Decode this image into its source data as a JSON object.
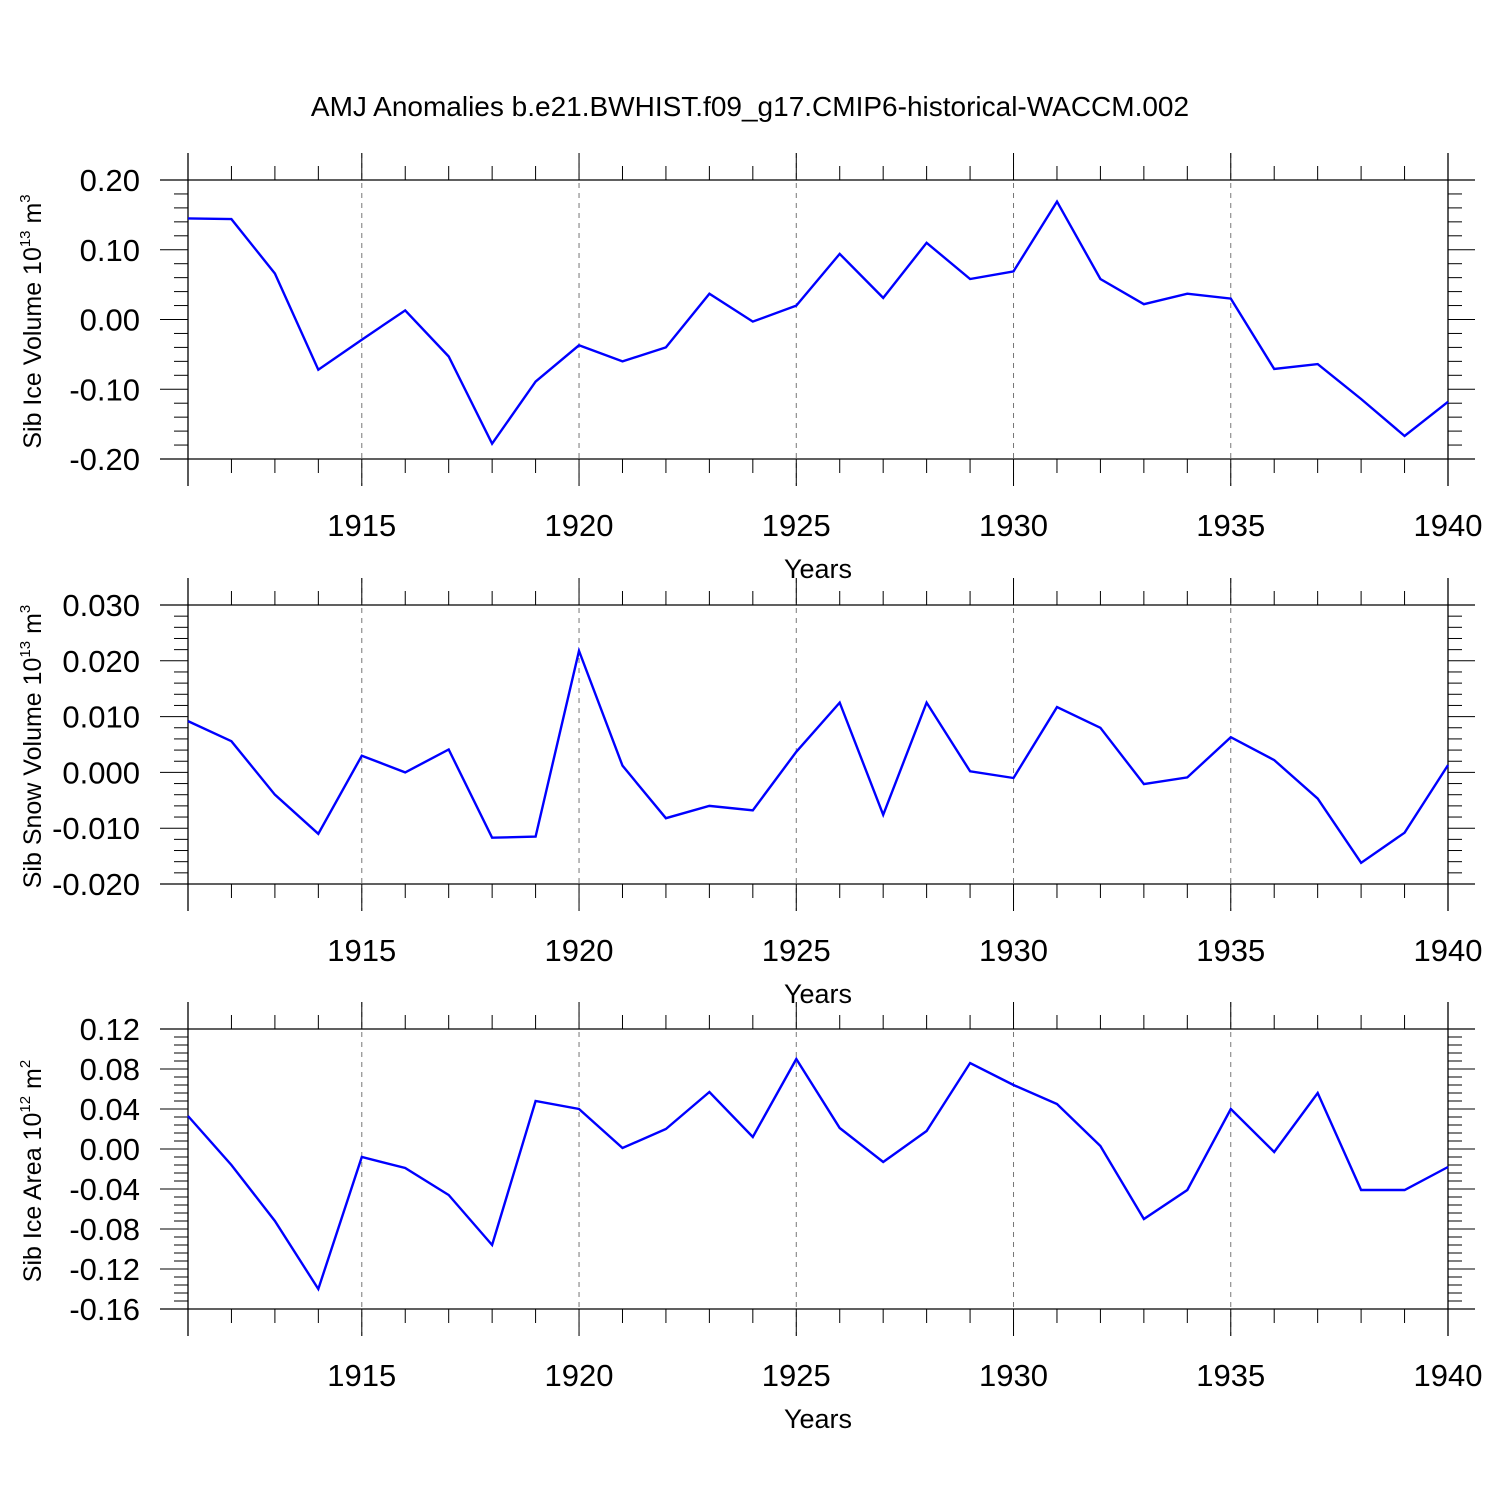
{
  "figure": {
    "title": "AMJ Anomalies b.e21.BWHIST.f09_g17.CMIP6-historical-WACCM.002"
  },
  "chart_data": [
    {
      "type": "line",
      "title": "",
      "xlabel": "Years",
      "ylabel": "Sib Ice Volume 10^13 m^3",
      "ylabel_parts": {
        "base": "Sib Ice Volume 10",
        "exp1": "13",
        "unit": " m",
        "exp2": "3"
      },
      "xlim": [
        1911,
        1940
      ],
      "ylim": [
        -0.2,
        0.2
      ],
      "xticks": [
        1915,
        1920,
        1925,
        1930,
        1935,
        1940
      ],
      "xtick_labels": [
        "1915",
        "1920",
        "1925",
        "1930",
        "1935",
        "1940"
      ],
      "yticks": [
        -0.2,
        -0.1,
        0.0,
        0.1,
        0.2
      ],
      "ytick_labels": [
        "-0.20",
        "-0.10",
        "0.00",
        "0.10",
        "0.20"
      ],
      "grid": "vertical dashed at major x ticks",
      "color": "#0000ff",
      "x": [
        1911,
        1912,
        1913,
        1914,
        1915,
        1916,
        1917,
        1918,
        1919,
        1920,
        1921,
        1922,
        1923,
        1924,
        1925,
        1926,
        1927,
        1928,
        1929,
        1930,
        1931,
        1932,
        1933,
        1934,
        1935,
        1936,
        1937,
        1938,
        1939,
        1940
      ],
      "y": [
        0.145,
        0.144,
        0.066,
        -0.072,
        -0.029,
        0.013,
        -0.053,
        -0.178,
        -0.089,
        -0.037,
        -0.06,
        -0.04,
        0.037,
        -0.003,
        0.02,
        0.094,
        0.031,
        0.11,
        0.058,
        0.069,
        0.169,
        0.058,
        0.022,
        0.037,
        0.03,
        -0.071,
        -0.064,
        -0.114,
        -0.167,
        -0.118
      ]
    },
    {
      "type": "line",
      "title": "",
      "xlabel": "Years",
      "ylabel": "Sib Snow Volume 10^13 m^3",
      "ylabel_parts": {
        "base": "Sib Snow Volume 10",
        "exp1": "13",
        "unit": " m",
        "exp2": "3"
      },
      "xlim": [
        1911,
        1940
      ],
      "ylim": [
        -0.02,
        0.03
      ],
      "xticks": [
        1915,
        1920,
        1925,
        1930,
        1935,
        1940
      ],
      "xtick_labels": [
        "1915",
        "1920",
        "1925",
        "1930",
        "1935",
        "1940"
      ],
      "yticks": [
        -0.02,
        -0.01,
        0.0,
        0.01,
        0.02,
        0.03
      ],
      "ytick_labels": [
        "-0.020",
        "-0.010",
        "0.000",
        "0.010",
        "0.020",
        "0.030"
      ],
      "grid": "vertical dashed at major x ticks",
      "color": "#0000ff",
      "x": [
        1911,
        1912,
        1913,
        1914,
        1915,
        1916,
        1917,
        1918,
        1919,
        1920,
        1921,
        1922,
        1923,
        1924,
        1925,
        1926,
        1927,
        1928,
        1929,
        1930,
        1931,
        1932,
        1933,
        1934,
        1935,
        1936,
        1937,
        1938,
        1939,
        1940
      ],
      "y": [
        0.0092,
        0.0056,
        -0.004,
        -0.011,
        0.003,
        0.0,
        0.0041,
        -0.0117,
        -0.0115,
        0.0218,
        0.0012,
        -0.0082,
        -0.006,
        -0.0068,
        0.0037,
        0.0125,
        -0.0076,
        0.0125,
        0.0002,
        -0.001,
        0.0117,
        0.008,
        -0.0021,
        -0.0009,
        0.0063,
        0.0022,
        -0.0047,
        -0.0162,
        -0.0108,
        0.0013
      ]
    },
    {
      "type": "line",
      "title": "",
      "xlabel": "Years",
      "ylabel": "Sib Ice Area 10^12 m^2",
      "ylabel_parts": {
        "base": "Sib Ice Area 10",
        "exp1": "12",
        "unit": " m",
        "exp2": "2"
      },
      "xlim": [
        1911,
        1940
      ],
      "ylim": [
        -0.16,
        0.12
      ],
      "xticks": [
        1915,
        1920,
        1925,
        1930,
        1935,
        1940
      ],
      "xtick_labels": [
        "1915",
        "1920",
        "1925",
        "1930",
        "1935",
        "1940"
      ],
      "yticks": [
        -0.16,
        -0.12,
        -0.08,
        -0.04,
        0.0,
        0.04,
        0.08,
        0.12
      ],
      "ytick_labels": [
        "-0.16",
        "-0.12",
        "-0.08",
        "-0.04",
        "0.00",
        "0.04",
        "0.08",
        "0.12"
      ],
      "grid": "vertical dashed at major x ticks",
      "color": "#0000ff",
      "x": [
        1911,
        1912,
        1913,
        1914,
        1915,
        1916,
        1917,
        1918,
        1919,
        1920,
        1921,
        1922,
        1923,
        1924,
        1925,
        1926,
        1927,
        1928,
        1929,
        1930,
        1931,
        1932,
        1933,
        1934,
        1935,
        1936,
        1937,
        1938,
        1939,
        1940
      ],
      "y": [
        0.033,
        -0.016,
        -0.072,
        -0.14,
        -0.008,
        -0.019,
        -0.046,
        -0.096,
        0.048,
        0.04,
        0.001,
        0.02,
        0.057,
        0.012,
        0.09,
        0.021,
        -0.013,
        0.018,
        0.086,
        0.064,
        0.045,
        0.003,
        -0.07,
        -0.041,
        0.04,
        -0.003,
        0.056,
        -0.041,
        -0.041,
        -0.018
      ]
    }
  ]
}
